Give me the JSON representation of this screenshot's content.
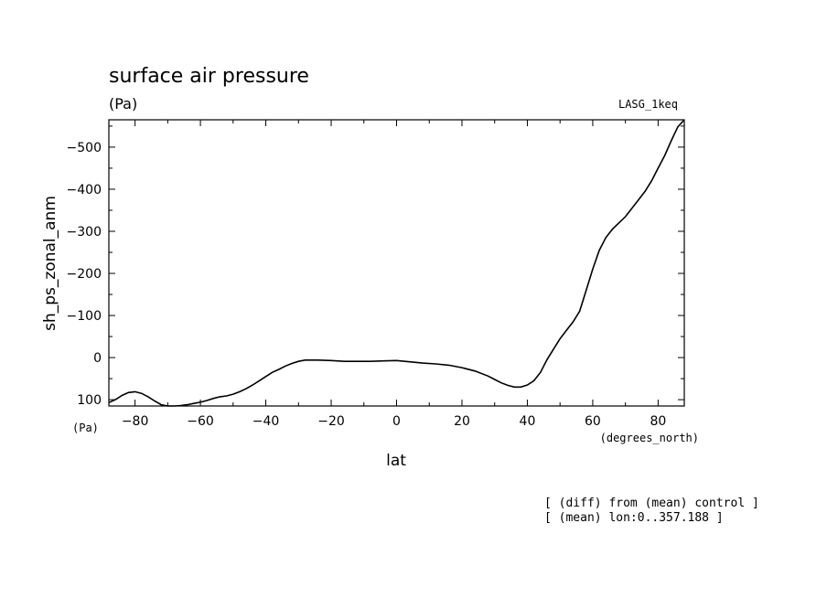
{
  "chart_data": {
    "type": "line",
    "title": "surface air pressure",
    "units": "(Pa)",
    "experiment": "LASG_1keq",
    "ylabel": "sh_ps_zonal_anm",
    "ylabel_units": "(Pa)",
    "xlabel": "lat",
    "xlabel_units": "(degrees_north)",
    "xlim": [
      -88,
      88
    ],
    "ylim": [
      115,
      -565
    ],
    "x_ticks": [
      -80,
      -60,
      -40,
      -20,
      0,
      20,
      40,
      60,
      80
    ],
    "x_tick_labels": [
      "−80",
      "−60",
      "−40",
      "−20",
      "0",
      "20",
      "40",
      "60",
      "80"
    ],
    "y_ticks": [
      100,
      0,
      -100,
      -200,
      -300,
      -400,
      -500
    ],
    "y_tick_labels": [
      "100",
      "0",
      "−100",
      "−200",
      "−300",
      "−400",
      "−500"
    ],
    "grid": false,
    "series": [
      {
        "x": [
          -88,
          -86,
          -84,
          -82,
          -80,
          -78,
          -76,
          -74,
          -72,
          -70,
          -68,
          -66,
          -64,
          -62,
          -60,
          -58,
          -56,
          -54,
          -52,
          -50,
          -48,
          -46,
          -44,
          -42,
          -40,
          -38,
          -36,
          -34,
          -32,
          -30,
          -28,
          -24,
          -20,
          -16,
          -12,
          -8,
          -4,
          0,
          4,
          8,
          12,
          16,
          20,
          24,
          28,
          30,
          32,
          34,
          36,
          38,
          40,
          42,
          44,
          46,
          48,
          50,
          52,
          54,
          56,
          58,
          60,
          62,
          64,
          66,
          68,
          70,
          72,
          74,
          76,
          78,
          80,
          82,
          84,
          86,
          88
        ],
        "y": [
          107,
          100,
          90,
          83,
          81,
          85,
          93,
          103,
          112,
          116,
          116,
          114,
          112,
          109,
          106,
          102,
          97,
          93,
          91,
          87,
          81,
          74,
          65,
          55,
          45,
          35,
          28,
          20,
          14,
          9,
          6,
          6,
          7,
          9,
          9,
          9,
          8,
          7,
          10,
          13,
          15,
          18,
          24,
          32,
          44,
          52,
          60,
          66,
          70,
          70,
          65,
          55,
          35,
          5,
          -20,
          -45,
          -65,
          -85,
          -110,
          -160,
          -210,
          -255,
          -285,
          -305,
          -320,
          -335,
          -355,
          -375,
          -395,
          -420,
          -450,
          -480,
          -515,
          -548,
          -570
        ]
      }
    ],
    "annotations": [
      "[ (diff) from (mean) control ]",
      "[ (mean) lon:0..357.188 ]"
    ]
  }
}
